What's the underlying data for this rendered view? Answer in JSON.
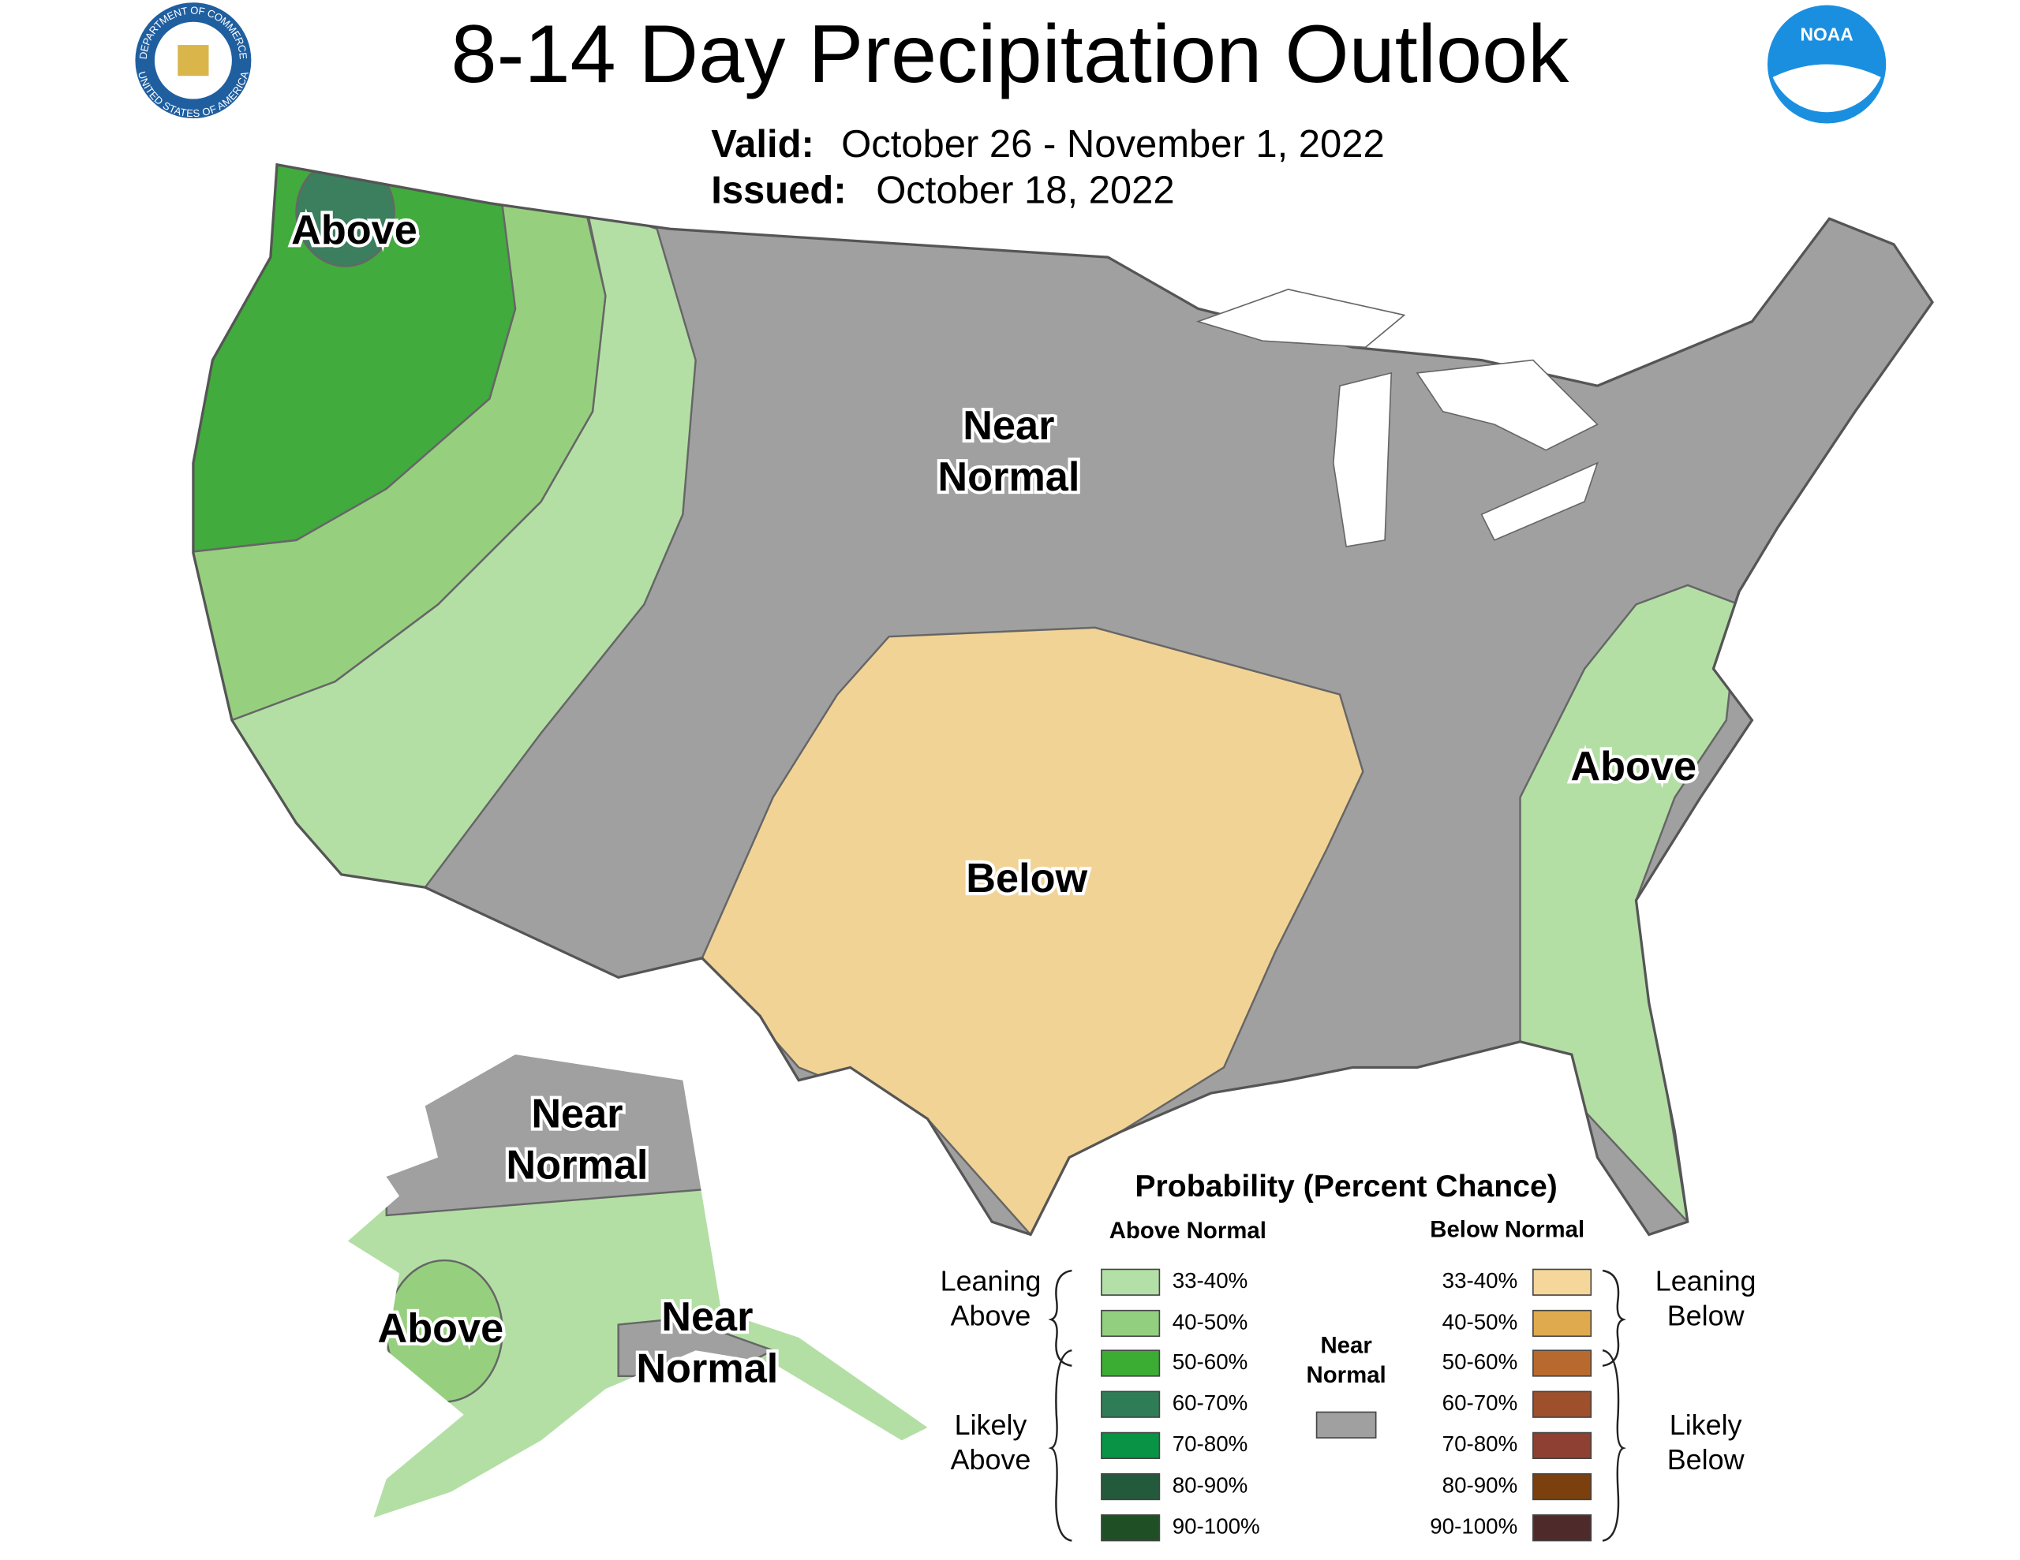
{
  "header": {
    "title": "8-14 Day Precipitation Outlook",
    "valid_label": "Valid:",
    "valid_dates": "October 26 - November 1, 2022",
    "issued_label": "Issued:",
    "issued_date": "October 18, 2022"
  },
  "logos": {
    "noaa": "NOAA",
    "commerce_top": "DEPARTMENT OF COMMERCE",
    "commerce_bottom": "UNITED STATES OF AMERICA"
  },
  "map_labels": [
    {
      "lines": [
        "Above"
      ]
    },
    {
      "lines": [
        "Near",
        "Normal"
      ]
    },
    {
      "lines": [
        "Below"
      ]
    },
    {
      "lines": [
        "Above"
      ]
    },
    {
      "lines": [
        "Near",
        "Normal"
      ]
    },
    {
      "lines": [
        "Above"
      ]
    },
    {
      "lines": [
        "Near",
        "Normal"
      ]
    }
  ],
  "legend": {
    "title": "Probability (Percent Chance)",
    "above_header": "Above Normal",
    "below_header": "Below Normal",
    "above_items": [
      {
        "label": "33-40%",
        "color": "#b3e0a6"
      },
      {
        "label": "40-50%",
        "color": "#92cf7f"
      },
      {
        "label": "50-60%",
        "color": "#3bad33"
      },
      {
        "label": "60-70%",
        "color": "#2f7d57"
      },
      {
        "label": "70-80%",
        "color": "#089444"
      },
      {
        "label": "80-90%",
        "color": "#235a3c"
      },
      {
        "label": "90-100%",
        "color": "#1f5025"
      }
    ],
    "below_items": [
      {
        "label": "33-40%",
        "color": "#f5d69b"
      },
      {
        "label": "40-50%",
        "color": "#dfa94e"
      },
      {
        "label": "50-60%",
        "color": "#b86a2e"
      },
      {
        "label": "60-70%",
        "color": "#9e4f2c"
      },
      {
        "label": "70-80%",
        "color": "#8e4032"
      },
      {
        "label": "80-90%",
        "color": "#7c3f0e"
      },
      {
        "label": "90-100%",
        "color": "#4f2a2a"
      }
    ],
    "near_normal": {
      "lines": [
        "Near",
        "Normal"
      ],
      "color": "#a0a0a0"
    },
    "leaning_above": [
      "Leaning",
      "Above"
    ],
    "likely_above": [
      "Likely",
      "Above"
    ],
    "leaning_below": [
      "Leaning",
      "Below"
    ],
    "likely_below": [
      "Likely",
      "Below"
    ]
  }
}
